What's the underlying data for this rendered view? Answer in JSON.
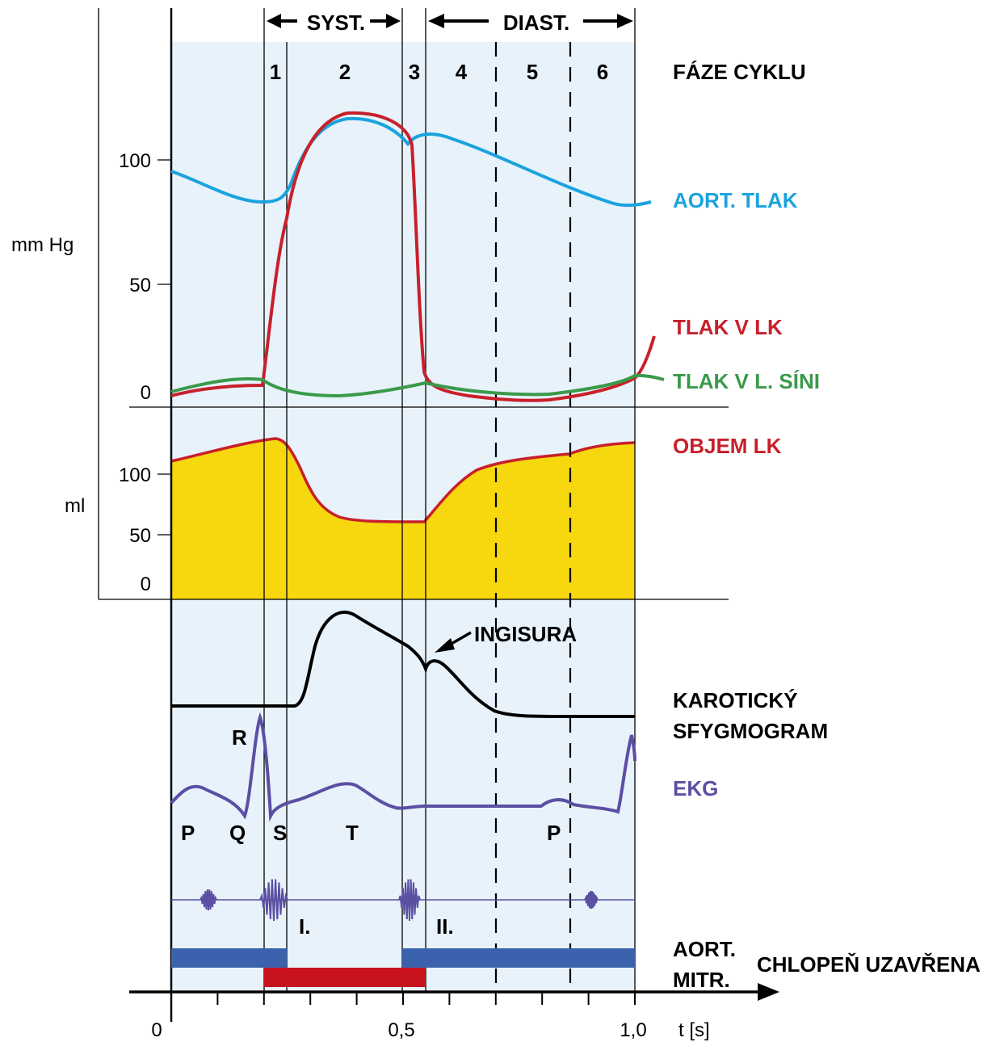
{
  "colors": {
    "background": "#e8f2fb",
    "aortic_pressure": "#1aa3de",
    "lv_pressure": "#c8202b",
    "atrial_pressure": "#3a9a4a",
    "lv_volume_fill": "#f7d70d",
    "lv_volume_line": "#c8202b",
    "ekg": "#5b4fa3",
    "valve_aortic": "#3b63ad",
    "valve_mitral": "#c8121e",
    "heart_sound": "#5b4fa3"
  },
  "phases": {
    "systole_label": "SYST.",
    "diastole_label": "DIAST.",
    "numbers": [
      "1",
      "2",
      "3",
      "4",
      "5",
      "6"
    ],
    "heading": "FÁZE CYKLU"
  },
  "pressure": {
    "unit": "mm Hg",
    "ticks": [
      "100",
      "50",
      "0"
    ],
    "aortic_label": "AORT. TLAK",
    "lv_label": "TLAK V LK",
    "atrial_label": "TLAK V L. SÍNI"
  },
  "volume": {
    "unit": "ml",
    "ticks": [
      "100",
      "50",
      "0"
    ],
    "label": "OBJEM LK"
  },
  "carotid": {
    "incisura_label": "INGISURA",
    "label_line1": "KAROTICKÝ",
    "label_line2": "SFYGMOGRAM"
  },
  "ekg": {
    "label": "EKG",
    "waves": [
      "P",
      "Q",
      "R",
      "S",
      "T",
      "P"
    ]
  },
  "heart_sounds": {
    "first": "I.",
    "second": "II."
  },
  "valves": {
    "aortic_label": "AORT.",
    "mitral_label": "MITR.",
    "closed_label": "CHLOPEŇ UZAVŘENA"
  },
  "time_axis": {
    "ticks": [
      "0",
      "0,5",
      "1,0"
    ],
    "unit": "t [s]"
  }
}
